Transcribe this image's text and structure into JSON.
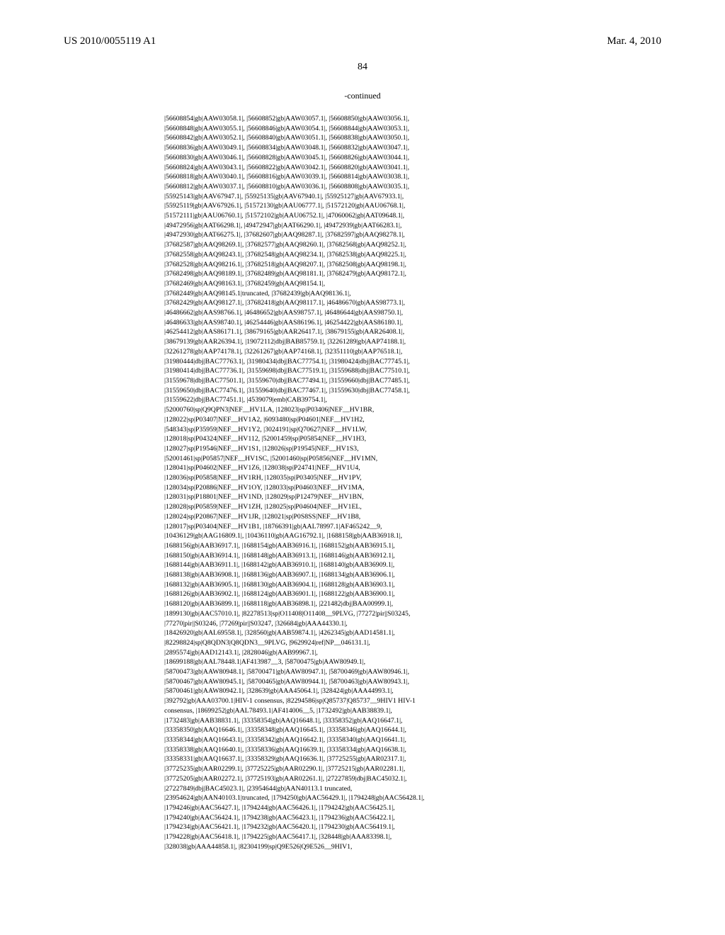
{
  "header": {
    "pub_number": "US 2010/0055119 A1",
    "pub_date": "Mar. 4, 2010"
  },
  "page_number": "84",
  "continued_label": "-continued",
  "listing": "|56608854|gb|AAW03058.1|, |56608852|gb|AAW03057.1|, |56608850|gb|AAW03056.1|,\n|56608848|gb|AAW03055.1|, |56608846|gb|AAW03054.1|, |56608844|gb|AAW03053.1|,\n|56608842|gb|AAW03052.1|, |56608840|gb|AAW03051.1|, |56608838|gb|AAW03050.1|,\n|56608836|gb|AAW03049.1|, |56608834|gb|AAW03048.1|, |56608832|gb|AAW03047.1|,\n|56608830|gb|AAW03046.1|, |56608828|gb|AAW03045.1|, |56608826|gb|AAW03044.1|,\n|56608824|gb|AAW03043.1|, |56608822|gb|AAW03042.1|, |56608820|gb|AAW03041.1|,\n|56608818|gb|AAW03040.1|, |56608816|gb|AAW03039.1|, |56608814|gb|AAW03038.1|,\n|56608812|gb|AAW03037.1|, |56608810|gb|AAW03036.1|, |56608808|gb|AAW03035.1|,\n|55925143|gb|AAV67947.1|, |55925135|gb|AAV67940.1|, |55925127|gb|AAV67933.1|,\n|55925119|gb|AAV67926.1|, |51572130|gb|AAU06777.1|, |51572120|gb|AAU06768.1|,\n|51572111|gb|AAU06760.1|, |51572102|gb|AAU06752.1|, |47060062|gb|AAT09648.1|,\n|49472956|gb|AAT66298.1|, |49472947|gb|AAT66290.1|, |49472939|gb|AAT66283.1|,\n|49472930|gb|AAT66275.1|, |37682607|gb|AAQ98287.1|, |37682597|gb|AAQ98278.1|,\n|37682587|gb|AAQ98269.1|, |37682577|gb|AAQ98260.1|, |37682568|gb|AAQ98252.1|,\n|37682558|gb|AAQ98243.1|, |37682548|gb|AAQ98234.1|, |37682538|gb|AAQ98225.1|,\n|37682528|gb|AAQ98216.1|, |37682518|gb|AAQ98207.1|, |37682508|gb|AAQ98198.1|,\n|37682498|gb|AAQ98189.1|, |37682489|gb|AAQ98181.1|, |37682479|gb|AAQ98172.1|,\n|37682469|gb|AAQ98163.1|, |37682459|gb|AAQ98154.1|,\n|37682449|gb|AAQ98145.1|truncated, |37682439|gb|AAQ98136.1|,\n|37682429|gb|AAQ98127.1|, |37682418|gb|AAQ98117.1|, |46486670|gb|AAS98773.1|,\n|46486662|gb|AAS98766.1|, |46486652|gb|AAS98757.1|, |46486644|gb|AAS98750.1|,\n|46486633|gb|AAS98740.1|, |46254446|gb|AAS86196.1|, |46254422|gb|AAS86180.1|,\n|46254412|gb|AAS86171.1|, |38679165|gb|AAR26417.1|, |38679155|gb|AAR26408.1|,\n|38679139|gb|AAR26394.1|, |19072112|dbj|BAB85759.1|, |32261289|gb|AAP74188.1|,\n|32261278|gb|AAP74178.1|, |32261267|gb|AAP74168.1|, |32351110|gb|AAP76518.1|,\n|31980444|dbj|BAC77763.1|, |31980434|dbj|BAC77754.1|, |31980424|dbj|BAC77745.1|,\n|31980414|dbj|BAC77736.1|, |31559698|dbj|BAC77519.1|, |31559688|dbj|BAC77510.1|,\n|31559678|dbj|BAC77501.1|, |31559670|dbj|BAC77494.1|, |31559660|dbj|BAC77485.1|,\n|31559650|dbj|BAC77476.1|, |31559640|dbj|BAC77467.1|, |31559630|dbj|BAC77458.1|,\n|31559622|dbj|BAC77451.1|, |4539079|emb|CAB39754.1|,\n|52000760|sp|Q9QPN3|NEF__HV1LA, |128023|sp|P03406|NEF__HV1BR,\n|128022|sp|P03407|NEF__HV1A2, |6093480|sp|P04601|NEF__HV1H2,\n|548343|sp|P35959|NEF__HV1Y2, |3024191|sp|Q70627|NEF__HV1LW,\n|128018|sp|P04324|NEF__HV112, |52001459|sp|P05854|NEF__HV1H3,\n|128027|sp|P19546|NEF__HV1S1, |128026|sp|P19545|NEF__HV1S3,\n|52001461|sp|P05857|NEF__HV1SC, |52001460|sp|P05856|NEF__HV1MN,\n|128041|sp|P04602|NEF__HV1Z6, |128038|sp|P24741|NEF__HV1U4,\n|128036|sp|P05858|NEF__HV1RH, |128035|sp|P03405|NEF__HV1PV,\n|128034|sp|P20886|NEF__HV1OY, |128033|sp|P04603|NEF__HV1MA,\n|128031|sp|P18801|NEF__HV1ND, |128029|sp|P12479|NEF__HV1BN,\n|128028|sp|P05859|NEF__HV1ZH, |128025|sp|P04604|NEF__HV1EL,\n|128024|sp|P20867|NEF__HV1JR, |128021|sp|P0S8SS|NEF__HV1B8,\n|128017|sp|P03404|NEF__HV1B1, |18766391|gb|AAL78997.1|AF465242__9,\n|10436129|gb|AAG16809.1|, |10436110|gb|AAG16792.1|, |1688158|gb|AAB36918.1|,\n|1688156|gb|AAB36917.1|, |1688154|gb|AAB36916.1|, |1688152|gb|AAB36915.1|,\n|1688150|gb|AAB36914.1|, |1688148|gb|AAB36913.1|, |1688146|gb|AAB36912.1|,\n|1688144|gb|AAB36911.1|, |1688142|gb|AAB36910.1|, |1688140|gb|AAB36909.1|,\n|1688138|gb|AAB36908.1|, |1688136|gb|AAB36907.1|, |1688134|gb|AAB36906.1|,\n|1688132|gb|AAB36905.1|, |1688130|gb|AAB36904.1|, |1688128|gb|AAB36903.1|,\n|1688126|gb|AAB36902.1|, |1688124|gb|AAB36901.1|, |1688122|gb|AAB36900.1|,\n|1688120|gb|AAB36899.1|, |1688118|gb|AAB36898.1|, |221482|dbj|BAA00999.1|,\n|1899130|gb|AAC57010.1|, |82278513|sp|O11408|O11408__9PLVG, |77272|pir||S03245,\n|77270|pir||S03246, |77269|pir||S03247, |326684|gb|AAA44330.1|,\n|18426920|gb|AAL69558.1|, |328560|gb|AAB59874.1|, |4262345|gb|AAD14581.1|,\n|82298824|sp|Q8QDN3|Q8QDN3__9PLVG, |9629924|ref|NP__046131.1|,\n|2895574|gb|AAD12143.1|, |2828046|gb|AAB99967.1|,\n|18699188|gb|AAL78448.1|AF413987__3, |58700475|gb|AAW80949.1|,\n|58700473|gb|AAW80948.1|, |58700471|gb|AAW80947.1|, |58700469|gb|AAW80946.1|,\n|58700467|gb|AAW80945.1|, |58700465|gb|AAW80944.1|, |58700463|gb|AAW80943.1|,\n|58700461|gb|AAW80942.1|, |328639|gb|AAA45064.1|, |328424|gb|AAA44993.1|,\n|392792|gb|AAA03700.1|HIV-1 consensus, |82294586|sp|Q85737|Q85737__9HIV1 HIV-1\nconsensus, |18699252|gb|AAL78493.1|AF414006__5, |1732492|gb|AAB38839.1|,\n|1732483|gb|AAB38831.1|, |33358354|gb|AAQ16648.1|, |33358352|gb|AAQ16647.1|,\n|33358350|gb|AAQ16646.1|, |33358348|gb|AAQ16645.1|, |33358346|gb|AAQ16644.1|,\n|33358344|gb|AAQ16643.1|, |33358342|gb|AAQ16642.1|, |33358340|gb|AAQ16641.1|,\n|33358338|gb|AAQ16640.1|, |33358336|gb|AAQ16639.1|, |33358334|gb|AAQ16638.1|,\n|33358331|gb|AAQ16637.1|, |33358329|gb|AAQ16636.1|, |37725255|gb|AAR02317.1|,\n|37725235|gb|AAR02299.1|, |37725225|gb|AAR02290.1|, |37725215|gb|AAR02281.1|,\n|37725205|gb|AAR02272.1|, |37725193|gb|AAR02261.1|, |27227859|dbj|BAC45032.1|,\n|27227849|dbj|BAC45023.1|, |23954644|gb|AAN40113.1 truncated,\n|23954624|gb|AAN40103.1|truncated, |1794250|gb|AAC56429.1|, |1794248|gb|AAC56428.1|,\n|1794246|gb|AAC56427.1|, |1794244|gb|AAC56426.1|, |1794242|gb|AAC56425.1|,\n|1794240|gb|AAC56424.1|, |1794238|gb|AAC56423.1|, |1794236|gb|AAC56422.1|,\n|1794234|gb|AAC56421.1|, |1794232|gb|AAC56420.1|, |1794230|gb|AAC56419.1|,\n|1794228|gb|AAC56418.1|, |1794225|gb|AAC56417.1|, |328448|gb|AAA83398.1|,\n|328038|gb|AAA44858.1|, |82304199|sp|Q9E526|Q9E526__9HIV1,"
}
